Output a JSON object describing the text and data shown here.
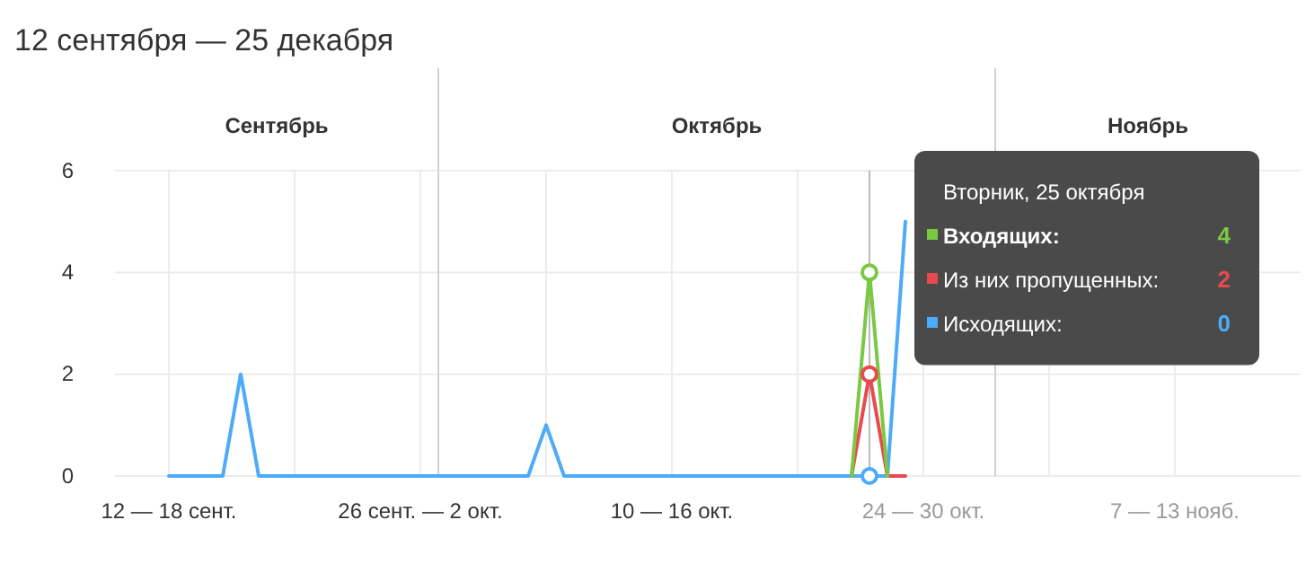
{
  "chart_data": {
    "type": "line",
    "title": "12 сентября — 25 декабря",
    "x": [
      "--09-16",
      "--09-17",
      "--09-18",
      "--09-19",
      "--09-20",
      "--09-21",
      "--09-22",
      "--09-23",
      "--09-24",
      "--09-25",
      "--09-26",
      "--09-27",
      "--09-28",
      "--09-29",
      "--09-30",
      "--10-01",
      "--10-02",
      "--10-03",
      "--10-04",
      "--10-05",
      "--10-06",
      "--10-07",
      "--10-08",
      "--10-09",
      "--10-10",
      "--10-11",
      "--10-12",
      "--10-13",
      "--10-14",
      "--10-15",
      "--10-16",
      "--10-17",
      "--10-18",
      "--10-19",
      "--10-20",
      "--10-21",
      "--10-22",
      "--10-23",
      "--10-24",
      "--10-25",
      "--10-26",
      "--10-27"
    ],
    "series": [
      {
        "name": "Входящих:",
        "color": "#7ac943",
        "values": [
          null,
          null,
          null,
          null,
          null,
          null,
          null,
          null,
          null,
          null,
          null,
          null,
          null,
          null,
          null,
          null,
          null,
          null,
          null,
          null,
          null,
          null,
          null,
          null,
          null,
          null,
          null,
          null,
          null,
          null,
          null,
          null,
          null,
          null,
          null,
          null,
          null,
          null,
          0,
          4,
          0,
          null
        ]
      },
      {
        "name": "Из них пропущенных:",
        "color": "#e84a50",
        "values": [
          null,
          null,
          null,
          null,
          null,
          null,
          null,
          null,
          null,
          null,
          null,
          null,
          null,
          null,
          null,
          null,
          null,
          null,
          null,
          null,
          null,
          null,
          null,
          null,
          null,
          null,
          null,
          null,
          null,
          null,
          null,
          null,
          null,
          null,
          null,
          null,
          null,
          null,
          0,
          2,
          0,
          0
        ]
      },
      {
        "name": "Исходящих:",
        "color": "#4dabf7",
        "values": [
          0,
          0,
          0,
          0,
          2,
          0,
          0,
          0,
          0,
          0,
          0,
          0,
          0,
          0,
          0,
          0,
          0,
          0,
          0,
          0,
          0,
          1,
          0,
          0,
          0,
          0,
          0,
          0,
          0,
          0,
          0,
          0,
          0,
          0,
          0,
          0,
          0,
          0,
          0,
          0,
          0,
          5
        ]
      }
    ],
    "xlim": [
      "--09-13",
      "--11-18"
    ],
    "xticks": [
      {
        "value": "--09-16",
        "label": "12 — 18 сент."
      },
      {
        "value": "--09-23",
        "label": null
      },
      {
        "value": "--09-30",
        "label": "26 сент. — 2 окт."
      },
      {
        "value": "--10-07",
        "label": null
      },
      {
        "value": "--10-14",
        "label": "10 — 16 окт."
      },
      {
        "value": "--10-21",
        "label": null
      },
      {
        "value": "--10-28",
        "label": "24 — 30 окт."
      },
      {
        "value": "--11-04",
        "label": null
      },
      {
        "value": "--11-11",
        "label": "7 — 13 нояб."
      }
    ],
    "ylim": [
      0,
      6
    ],
    "yticks": [
      0,
      2,
      4,
      6
    ],
    "grid": true,
    "legend": "top right",
    "line_style": "solid",
    "ref_lines": [
      {
        "axis": "x",
        "value": "--10-01",
        "color": "#d0d0d0"
      },
      {
        "axis": "x",
        "value": "--11-01",
        "color": "#d0d0d0"
      },
      {
        "axis": "x",
        "value": "--10-25",
        "color": "#bbbbbb"
      }
    ],
    "annotations": [
      "Вторник, 25 октября",
      "4",
      "2",
      "0",
      "Сентябрь",
      "Октябрь",
      "Ноябрь"
    ]
  }
}
